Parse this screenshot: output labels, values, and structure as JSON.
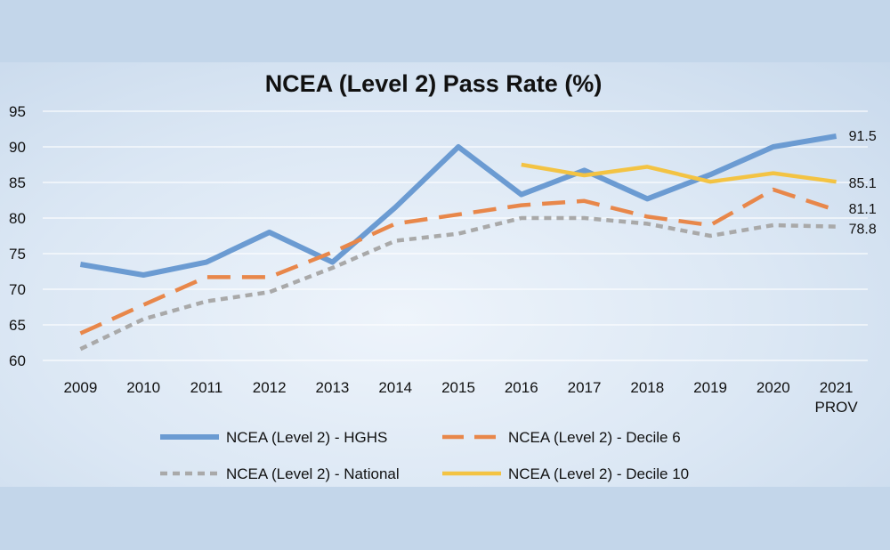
{
  "chart_data": {
    "type": "line",
    "title": "NCEA (Level 2) Pass Rate (%)",
    "xlabel": "",
    "ylabel": "",
    "categories": [
      "2009",
      "2010",
      "2011",
      "2012",
      "2013",
      "2014",
      "2015",
      "2016",
      "2017",
      "2018",
      "2019",
      "2020",
      "2021"
    ],
    "last_category_sub": "PROV",
    "ylim": [
      60,
      95
    ],
    "yticks": [
      60,
      65,
      70,
      75,
      80,
      85,
      90,
      95
    ],
    "grid": true,
    "legend_position": "bottom",
    "series": [
      {
        "name": "NCEA (Level 2) - HGHS",
        "color": "#6b9bd2",
        "style": "solid",
        "end_label": "91.5",
        "values": [
          73.5,
          72.0,
          73.8,
          78.0,
          73.8,
          81.5,
          90.0,
          83.3,
          86.7,
          82.7,
          86.1,
          90.0,
          91.5
        ]
      },
      {
        "name": "NCEA (Level 2) - Decile 6",
        "color": "#e8874a",
        "style": "dash",
        "end_label": "81.1",
        "values": [
          63.8,
          67.8,
          71.7,
          71.7,
          75.2,
          79.2,
          80.5,
          81.8,
          82.4,
          80.2,
          79.0,
          84.0,
          81.1
        ]
      },
      {
        "name": "NCEA (Level 2) - National",
        "color": "#a9a9a9",
        "style": "dot",
        "end_label": "78.8",
        "values": [
          61.6,
          65.8,
          68.3,
          69.6,
          73.0,
          76.8,
          77.8,
          80.0,
          80.0,
          79.2,
          77.5,
          79.0,
          78.8
        ]
      },
      {
        "name": "NCEA (Level 2) - Decile 10",
        "color": "#f3c343",
        "style": "solid",
        "end_label": "85.1",
        "values": [
          null,
          null,
          null,
          null,
          null,
          null,
          null,
          87.5,
          86.0,
          87.2,
          85.1,
          86.3,
          85.1
        ]
      }
    ]
  }
}
